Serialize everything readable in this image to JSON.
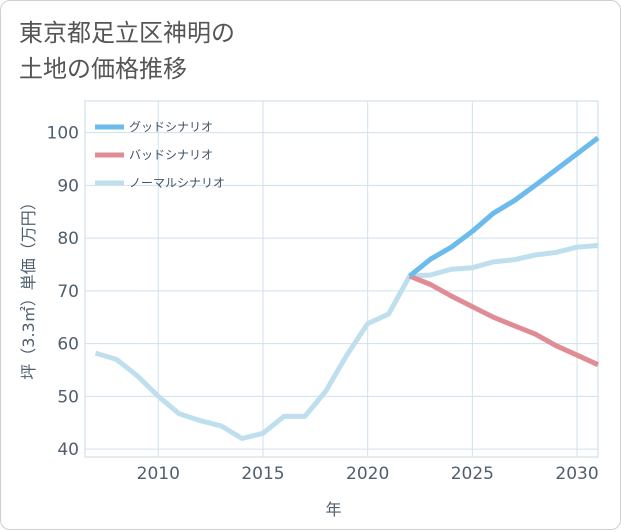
{
  "title_lines": [
    "東京都足立区神明の",
    "土地の価格推移"
  ],
  "chart_data": {
    "type": "line",
    "title": "東京都足立区神明の土地の価格推移",
    "xlabel": "年",
    "ylabel": "坪（3.3㎡）単価（万円）",
    "xlim": [
      2006.5,
      2031
    ],
    "ylim": [
      38.5,
      106
    ],
    "xticks": [
      2010,
      2015,
      2020,
      2025,
      2030
    ],
    "yticks": [
      40,
      50,
      60,
      70,
      80,
      90,
      100
    ],
    "grid": true,
    "legend_position": "top-left",
    "series": [
      {
        "name": "グッドシナリオ",
        "color": "#6cbbec",
        "x": [
          2022,
          2023,
          2024,
          2025,
          2026,
          2027,
          2028,
          2029,
          2030,
          2031
        ],
        "y": [
          72.8,
          76.0,
          78.3,
          81.3,
          84.7,
          87.1,
          90.0,
          93.0,
          96.0,
          99.0
        ]
      },
      {
        "name": "バッドシナリオ",
        "color": "#e08c95",
        "x": [
          2022,
          2023,
          2024,
          2025,
          2026,
          2027,
          2028,
          2029,
          2030,
          2031
        ],
        "y": [
          72.8,
          71.2,
          69.0,
          67.0,
          65.0,
          63.4,
          61.8,
          59.6,
          57.8,
          56.0
        ]
      },
      {
        "name": "ノーマルシナリオ",
        "color": "#bfdfee",
        "x": [
          2007,
          2008,
          2009,
          2010,
          2011,
          2012,
          2013,
          2014,
          2015,
          2016,
          2017,
          2018,
          2019,
          2020,
          2021,
          2022,
          2023,
          2024,
          2025,
          2026,
          2027,
          2028,
          2029,
          2030,
          2031
        ],
        "y": [
          58.2,
          57.0,
          53.9,
          50.0,
          46.7,
          45.4,
          44.4,
          42.0,
          43.0,
          46.2,
          46.2,
          51.0,
          57.8,
          63.8,
          65.6,
          72.8,
          73.0,
          74.1,
          74.4,
          75.5,
          75.9,
          76.8,
          77.3,
          78.3,
          78.6
        ]
      }
    ]
  }
}
